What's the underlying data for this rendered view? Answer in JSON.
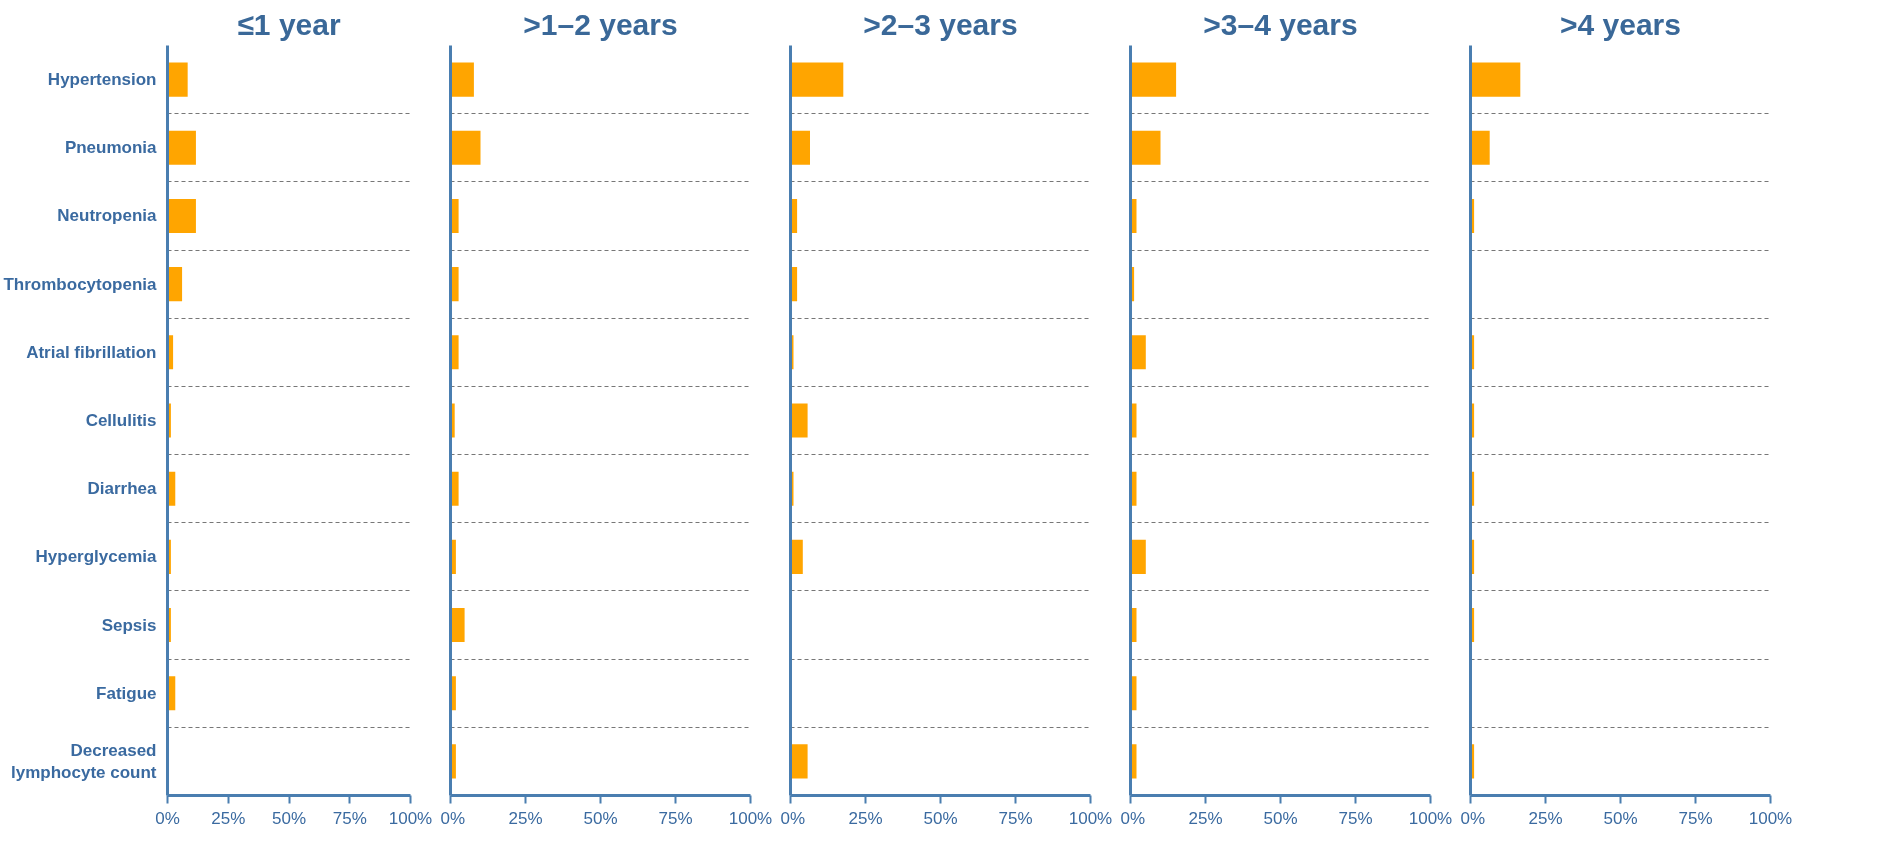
{
  "chart_data": [
    {
      "type": "bar",
      "orientation": "horizontal",
      "title": "≤1 year",
      "categories": [
        "Hypertension",
        "Pneumonia",
        "Neutropenia",
        "Thrombocytopenia",
        "Atrial fibrillation",
        "Cellulitis",
        "Diarrhea",
        "Hyperglycemia",
        "Sepsis",
        "Fatigue",
        "Decreased lymphocyte count"
      ],
      "values": [
        8.3,
        11.7,
        11.7,
        6,
        2.3,
        1.4,
        3.2,
        1.4,
        1.4,
        3.2,
        0
      ],
      "color": "#ffa500",
      "xlim": [
        0,
        100
      ],
      "xticks": [
        {
          "value": 0,
          "label": "0%"
        },
        {
          "value": 25,
          "label": "25%"
        },
        {
          "value": 50,
          "label": "50%"
        },
        {
          "value": 75,
          "label": "75%"
        },
        {
          "value": 100,
          "label": "100%"
        }
      ],
      "grid": "y"
    },
    {
      "type": "bar",
      "orientation": "horizontal",
      "title": ">1–2 years",
      "categories": [
        null,
        null,
        null,
        null,
        null,
        null,
        null,
        null,
        null,
        null,
        null
      ],
      "values": [
        7.8,
        10,
        2.7,
        2.7,
        2.7,
        1.4,
        2.7,
        1.8,
        4.7,
        1.8,
        1.8
      ],
      "color": "#ffa500",
      "xlim": [
        0,
        100
      ],
      "xticks": [
        {
          "value": 0,
          "label": "0%"
        },
        {
          "value": 25,
          "label": "25%"
        },
        {
          "value": 50,
          "label": "50%"
        },
        {
          "value": 75,
          "label": "75%"
        },
        {
          "value": 100,
          "label": "100%"
        }
      ],
      "grid": "y"
    },
    {
      "type": "bar",
      "orientation": "horizontal",
      "title": ">2–3 years",
      "categories": [
        null,
        null,
        null,
        null,
        null,
        null,
        null,
        null,
        null,
        null,
        null
      ],
      "values": [
        17.6,
        6.5,
        2.2,
        2.2,
        1,
        5.7,
        1,
        4.1,
        0,
        0,
        5.7
      ],
      "color": "#ffa500",
      "xlim": [
        0,
        100
      ],
      "xticks": [
        {
          "value": 0,
          "label": "0%"
        },
        {
          "value": 25,
          "label": "25%"
        },
        {
          "value": 50,
          "label": "50%"
        },
        {
          "value": 75,
          "label": "75%"
        },
        {
          "value": 100,
          "label": "100%"
        }
      ],
      "grid": "y"
    },
    {
      "type": "bar",
      "orientation": "horizontal",
      "title": ">3–4 years",
      "categories": [
        null,
        null,
        null,
        null,
        null,
        null,
        null,
        null,
        null,
        null,
        null
      ],
      "values": [
        15.2,
        10,
        2,
        1.2,
        5.1,
        2,
        2,
        5.1,
        2,
        2,
        2
      ],
      "color": "#ffa500",
      "xlim": [
        0,
        100
      ],
      "xticks": [
        {
          "value": 0,
          "label": "0%"
        },
        {
          "value": 25,
          "label": "25%"
        },
        {
          "value": 50,
          "label": "50%"
        },
        {
          "value": 75,
          "label": "75%"
        },
        {
          "value": 100,
          "label": "100%"
        }
      ],
      "grid": "y"
    },
    {
      "type": "bar",
      "orientation": "horizontal",
      "title": ">4 years",
      "categories": [
        null,
        null,
        null,
        null,
        null,
        null,
        null,
        null,
        null,
        null,
        null
      ],
      "values": [
        16.6,
        6.4,
        1.2,
        0,
        1.2,
        1.2,
        1.2,
        1.2,
        1.2,
        0,
        1.2
      ],
      "color": "#ffa500",
      "xlim": [
        0,
        100
      ],
      "xticks": [
        {
          "value": 0,
          "label": "0%"
        },
        {
          "value": 25,
          "label": "25%"
        },
        {
          "value": 50,
          "label": "50%"
        },
        {
          "value": 75,
          "label": "75%"
        },
        {
          "value": 100,
          "label": "100%"
        }
      ],
      "grid": "y"
    }
  ]
}
